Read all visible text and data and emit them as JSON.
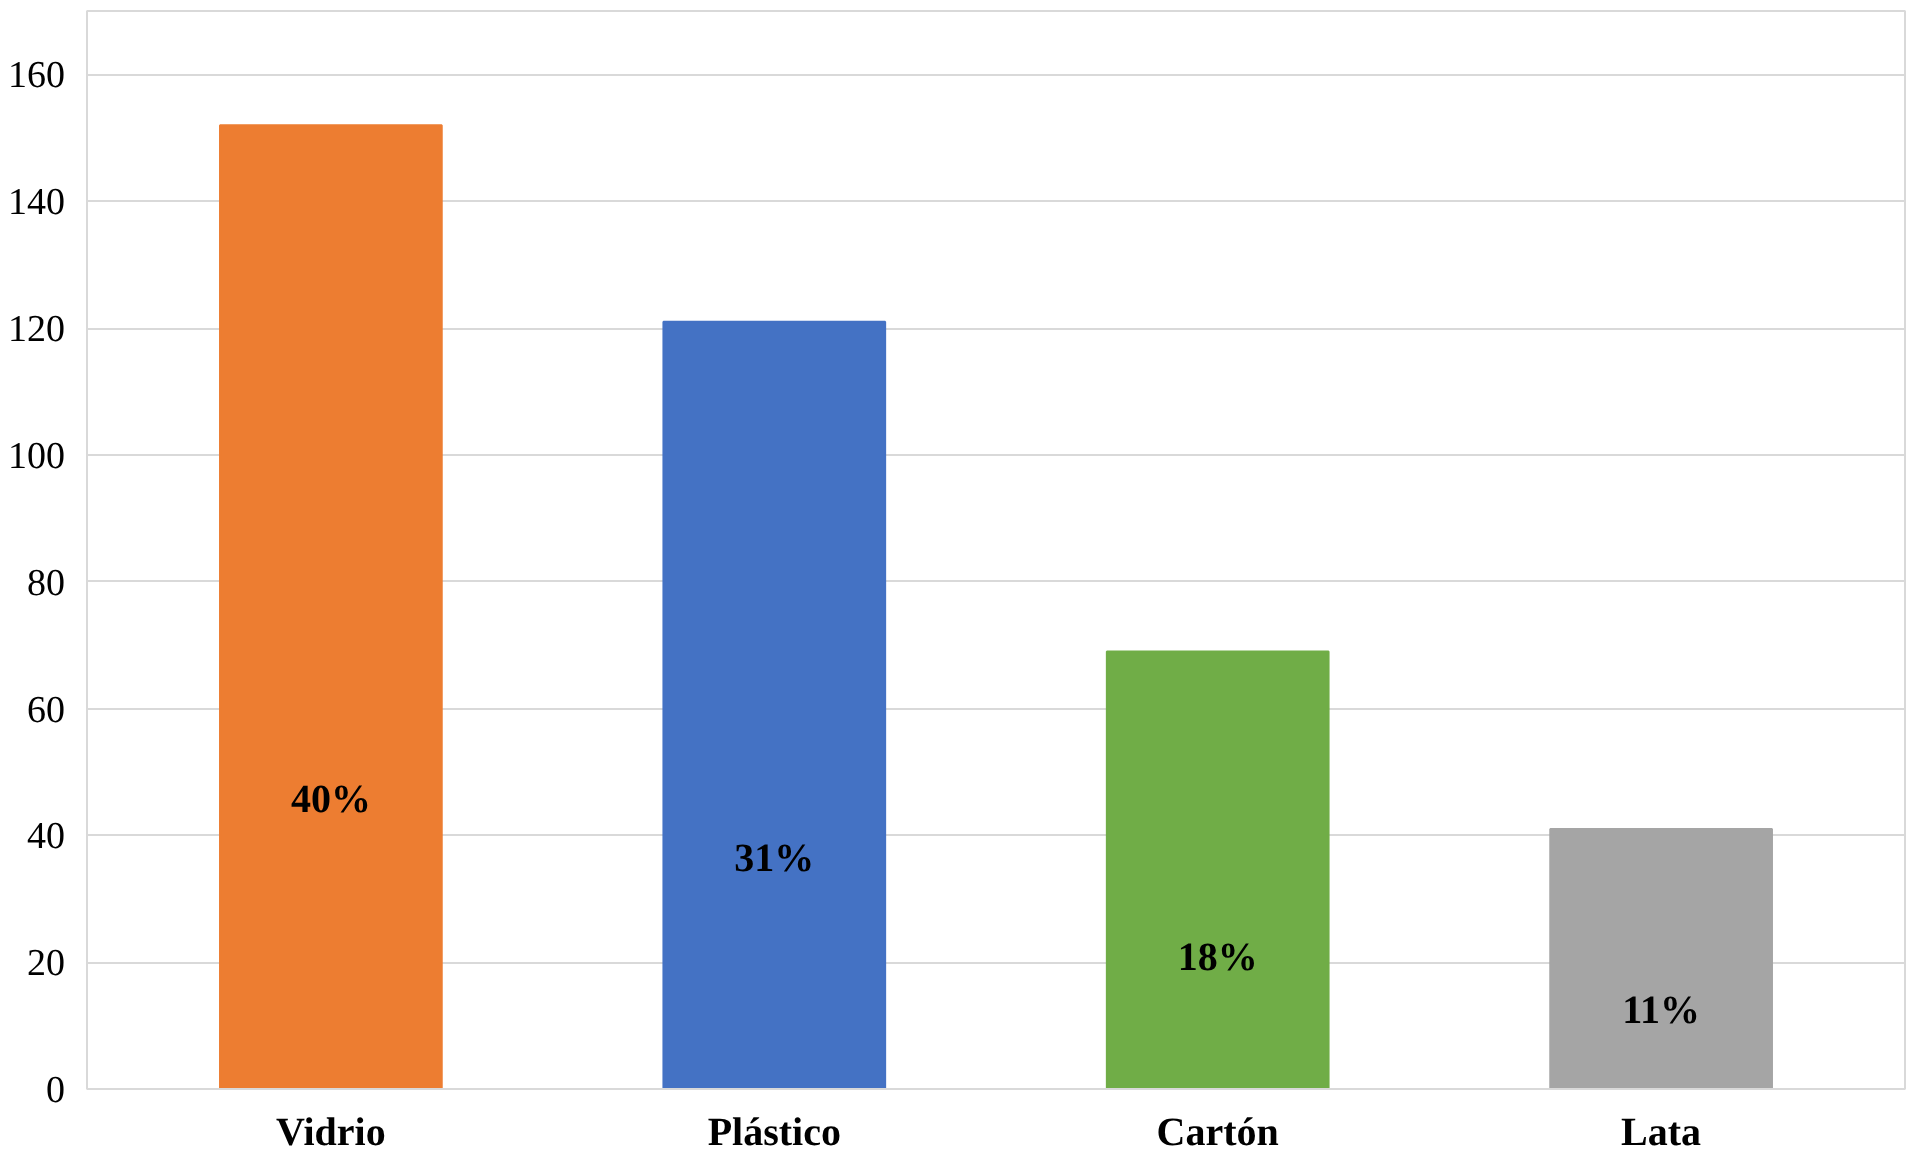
{
  "chart_data": {
    "type": "bar",
    "categories": [
      "Vidrio",
      "Plástico",
      "Cartón",
      "Lata"
    ],
    "values": [
      152,
      121,
      69,
      41
    ],
    "colors": [
      "#ed7d31",
      "#4472c4",
      "#70ad47",
      "#a5a5a5"
    ],
    "annotations": [
      "40%",
      "31%",
      "18%",
      "11%"
    ],
    "ylim": [
      0,
      170
    ],
    "yticks": [
      0,
      20,
      40,
      60,
      80,
      100,
      120,
      140,
      160
    ],
    "grid": "y"
  }
}
